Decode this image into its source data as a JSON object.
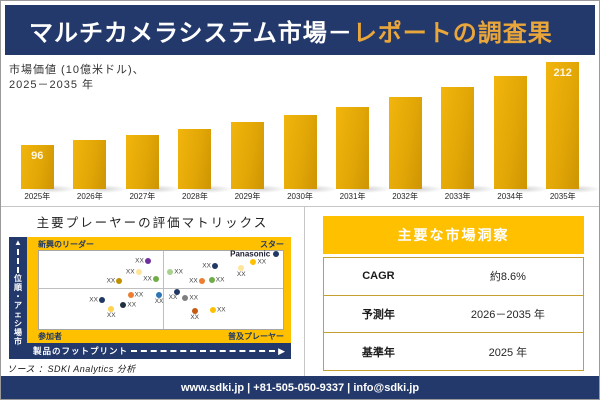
{
  "header": {
    "title_white": "マルチカメラシステム市場－",
    "title_gold": "レポートの調査果"
  },
  "chart": {
    "subtitle_line1": "市場価値 (10億米ドル)、",
    "subtitle_line2": "2025－2035 年"
  },
  "chart_data": [
    {
      "type": "bar",
      "title": "市場価値 (10億米ドル)、2025－2035 年",
      "categories": [
        "2025年",
        "2026年",
        "2027年",
        "2028年",
        "2029年",
        "2030年",
        "2031年",
        "2032年",
        "2033年",
        "2034年",
        "2035年"
      ],
      "values": [
        96,
        104,
        112,
        122,
        132,
        143,
        154,
        167,
        181,
        196,
        212
      ],
      "displayed_labels": [
        "96",
        "",
        "",
        "",
        "",
        "",
        "",
        "",
        "",
        "",
        "212"
      ],
      "render_heights_pct": [
        34.5,
        38.9,
        42.9,
        47.6,
        52.9,
        58.4,
        64.5,
        72.4,
        80.3,
        89.2,
        100
      ],
      "ylim": [
        0,
        212
      ],
      "grid": false,
      "bar_color": "#E2A706"
    },
    {
      "type": "scatter",
      "title": "主要プレーヤーの評価マトリックス",
      "xlabel": "製品のフットプリント",
      "ylabel": "市場シェア・順位",
      "quadrant_labels": [
        "新興のリーダー",
        "スター",
        "参加者",
        "普及プレーヤー"
      ],
      "points": [
        {
          "x": 44.6,
          "y": 12.5,
          "c": "#7030A0",
          "label": "XX",
          "pos": "l"
        },
        {
          "x": 40.8,
          "y": 26.3,
          "c": "#FFE599",
          "label": "XX",
          "pos": "l"
        },
        {
          "x": 32.9,
          "y": 38.8,
          "c": "#BF9000",
          "label": "XX",
          "pos": "l"
        },
        {
          "x": 47.9,
          "y": 36.3,
          "c": "#70AD47",
          "label": "XX",
          "pos": "l"
        },
        {
          "x": 97.2,
          "y": 4.0,
          "c": "#1F3864",
          "label": "Panasonic",
          "pos": "L"
        },
        {
          "x": 53.8,
          "y": 26.3,
          "c": "#A9D18E",
          "label": "XX",
          "pos": "r"
        },
        {
          "x": 72.1,
          "y": 18.8,
          "c": "#1F3864",
          "label": "XX",
          "pos": "l"
        },
        {
          "x": 82.9,
          "y": 21.3,
          "c": "#FFE599",
          "label": "XX",
          "pos": "b"
        },
        {
          "x": 87.9,
          "y": 13.8,
          "c": "#FFC000",
          "label": "XX",
          "pos": "r"
        },
        {
          "x": 66.7,
          "y": 38.8,
          "c": "#ED7D31",
          "label": "XX",
          "pos": "l"
        },
        {
          "x": 70.8,
          "y": 37.5,
          "c": "#70AD47",
          "label": "XX",
          "pos": "r"
        },
        {
          "x": 25.8,
          "y": 62.5,
          "c": "#1F3864",
          "label": "XX",
          "pos": "l"
        },
        {
          "x": 37.5,
          "y": 56.3,
          "c": "#ED7D31",
          "label": "XX",
          "pos": "r"
        },
        {
          "x": 34.6,
          "y": 68.8,
          "c": "#203040",
          "label": "XX",
          "pos": "r"
        },
        {
          "x": 29.6,
          "y": 73.8,
          "c": "#FFD34D",
          "label": "XX",
          "pos": "b"
        },
        {
          "x": 49.2,
          "y": 56.3,
          "c": "#2E75B6",
          "label": "XX",
          "pos": "b"
        },
        {
          "x": 56.7,
          "y": 52.5,
          "c": "#1F3864",
          "label": "XX",
          "pos": "bl"
        },
        {
          "x": 60.0,
          "y": 60.0,
          "c": "#7F7F7F",
          "label": "XX",
          "pos": "r"
        },
        {
          "x": 63.8,
          "y": 76.3,
          "c": "#C55A11",
          "label": "XX",
          "pos": "b"
        },
        {
          "x": 71.3,
          "y": 75.0,
          "c": "#FFC000",
          "label": "XX",
          "pos": "r"
        }
      ]
    }
  ],
  "matrix": {
    "title": "主要プレーヤーの評価マトリックス",
    "quadrants": {
      "top_left": "新興のリーダー",
      "top_right": "スター",
      "bottom_left": "参加者",
      "bottom_right": "普及プレーヤー"
    },
    "x_axis": "製品のフットプリント",
    "y_axis": "市場シェア・順位",
    "y_arrow": "▲",
    "x_arrow": "▶"
  },
  "source": "ソース ：SDKI Analytics 分析",
  "insights": {
    "title": "主要な市場洞察",
    "rows": [
      {
        "label": "CAGR",
        "value": "約8.6%"
      },
      {
        "label": "予測年",
        "value": "2026－2035 年"
      },
      {
        "label": "基準年",
        "value": "2025 年"
      }
    ]
  },
  "footer": {
    "contact": "www.sdki.jp | +81-505-050-9337 | info@sdki.jp"
  },
  "colors": {
    "navy": "#24396B",
    "gold": "#FFC000",
    "title_gold": "#E9A63B",
    "bar_gradient_top": "#F2B50D",
    "bar_gradient_bottom": "#CE9403"
  }
}
